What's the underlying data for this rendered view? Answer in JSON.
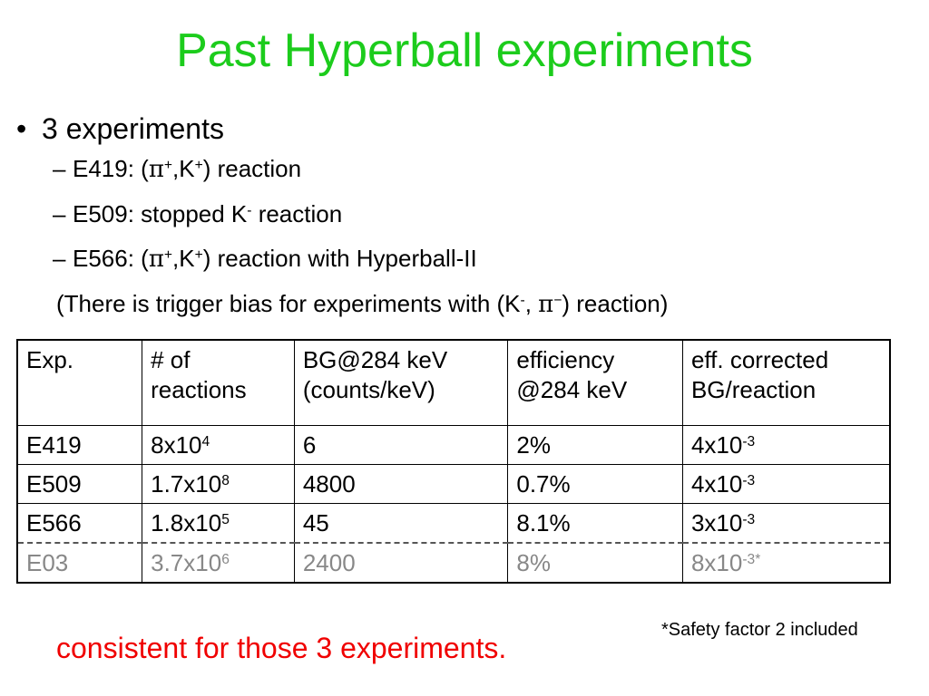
{
  "title": "Past Hyperball experiments",
  "bullet": "3 experiments",
  "subitems": {
    "e419": {
      "prefix": "E419: (",
      "pi": "π",
      "pi_sup": "+",
      "mid": ",K",
      "k_sup": "+",
      "suffix": ") reaction"
    },
    "e509": {
      "prefix": "E509: stopped K",
      "k_sup": "-",
      "suffix": " reaction"
    },
    "e566": {
      "prefix": "E566: (",
      "pi": "π",
      "pi_sup": "+",
      "mid": ",K",
      "k_sup": "+",
      "suffix": ") reaction with Hyperball-II"
    }
  },
  "note": {
    "prefix": "(There is trigger bias for experiments with (K",
    "k_sup": "-",
    "mid": ", ",
    "pi": "π",
    "pi_sup": "−",
    "suffix": ") reaction)"
  },
  "table": {
    "headers": {
      "exp": "Exp.",
      "reactions_1": "# of",
      "reactions_2": "reactions",
      "bg_1": "BG@284 keV",
      "bg_2": "(counts/keV)",
      "eff_1": "efficiency",
      "eff_2": "@284 keV",
      "corr_1": "eff. corrected",
      "corr_2": "BG/reaction"
    },
    "rows": [
      {
        "exp": "E419",
        "reactions_base": "8x10",
        "reactions_exp": "4",
        "bg": "6",
        "eff": "2%",
        "corr_base": "4x10",
        "corr_exp": "-3"
      },
      {
        "exp": "E509",
        "reactions_base": "1.7x10",
        "reactions_exp": "8",
        "bg": "4800",
        "eff": "0.7%",
        "corr_base": "4x10",
        "corr_exp": "-3"
      },
      {
        "exp": "E566",
        "reactions_base": "1.8x10",
        "reactions_exp": "5",
        "bg": "45",
        "eff": "8.1%",
        "corr_base": "3x10",
        "corr_exp": "-3"
      },
      {
        "exp": "E03",
        "reactions_base": "3.7x10",
        "reactions_exp": "6",
        "bg": "2400",
        "eff": "8%",
        "corr_base": "8x10",
        "corr_exp": "-3*"
      }
    ]
  },
  "footnote": "*Safety factor 2 included",
  "conclusion": "consistent for those 3 experiments.",
  "colors": {
    "title": "#1ccc1c",
    "conclusion": "#f00000",
    "dim_row": "#888888"
  }
}
